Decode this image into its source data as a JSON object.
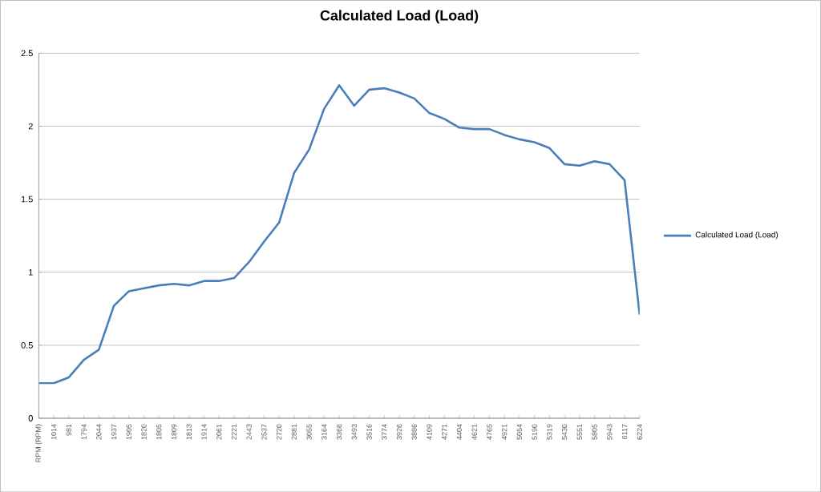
{
  "chart_data": {
    "type": "line",
    "title": "Calculated Load (Load)",
    "categories": [
      "RPM (RPM)",
      "1014",
      "981",
      "1794",
      "2044",
      "1937",
      "1905",
      "1820",
      "1805",
      "1809",
      "1813",
      "1914",
      "2061",
      "2221",
      "2443",
      "2537",
      "2720",
      "2881",
      "3055",
      "3164",
      "3366",
      "3493",
      "3516",
      "3774",
      "3926",
      "3886",
      "4109",
      "4271",
      "4404",
      "4621",
      "4765",
      "4921",
      "5054",
      "5190",
      "5319",
      "5430",
      "5551",
      "5805",
      "5943",
      "6117",
      "6224"
    ],
    "series": [
      {
        "name": "Calculated Load (Load)",
        "color": "#4a7ebb",
        "values": [
          0.24,
          0.24,
          0.28,
          0.4,
          0.47,
          0.77,
          0.87,
          0.89,
          0.91,
          0.92,
          0.91,
          0.94,
          0.94,
          0.96,
          1.07,
          1.21,
          1.34,
          1.68,
          1.84,
          2.12,
          2.28,
          2.14,
          2.25,
          2.26,
          2.23,
          2.19,
          2.09,
          2.05,
          1.99,
          1.98,
          1.98,
          1.94,
          1.91,
          1.89,
          1.85,
          1.74,
          1.73,
          1.76,
          1.74,
          1.63,
          0.71
        ]
      }
    ],
    "ylim": [
      0,
      2.5
    ],
    "yticks": [
      0,
      0.5,
      1,
      1.5,
      2,
      2.5
    ],
    "grid": "y",
    "legend": "right",
    "marker": "none",
    "line_style": "solid"
  }
}
